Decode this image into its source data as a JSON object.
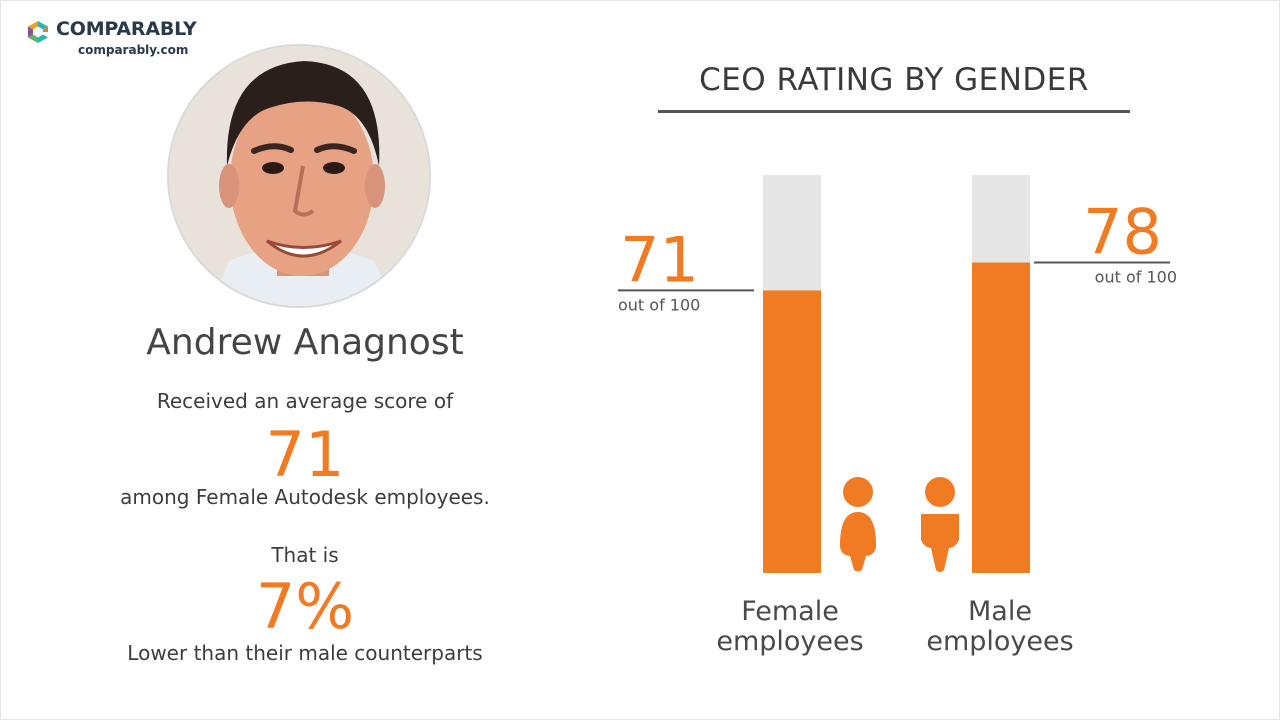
{
  "brand": {
    "name": "COMPARABLY",
    "url": "comparably.com",
    "colors": {
      "teal": "#2bb5b5",
      "orange": "#f07b22",
      "purple": "#8a4fa3",
      "green": "#5cb85c"
    }
  },
  "profile": {
    "name": "Andrew Anagnost",
    "caption_score": "Received an average score of",
    "score": "71",
    "caption_group": "among Female Autodesk employees.",
    "caption_that": "That is",
    "difference": "7%",
    "caption_compare": "Lower than their male counterparts"
  },
  "chart_data": {
    "type": "bar",
    "title": "CEO RATING BY GENDER",
    "categories": [
      "Female employees",
      "Male employees"
    ],
    "category_lines": [
      [
        "Female",
        "employees"
      ],
      [
        "Male",
        "employees"
      ]
    ],
    "values": [
      71,
      78
    ],
    "value_labels": [
      "71",
      "78"
    ],
    "sublabel": "out of 100",
    "ylim": [
      0,
      100
    ],
    "colors": {
      "bar": "#f07b22",
      "track": "#e6e6e6",
      "icon": "#f07b22",
      "rule": "#555555"
    }
  }
}
